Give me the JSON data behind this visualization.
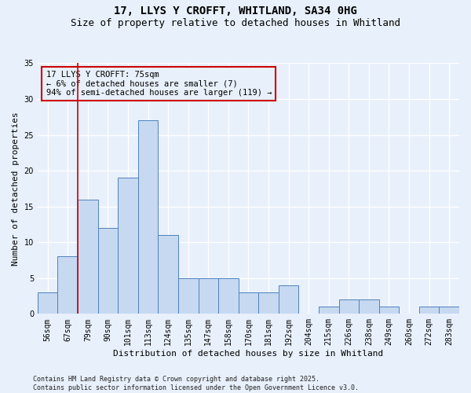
{
  "title_line1": "17, LLYS Y CROFFT, WHITLAND, SA34 0HG",
  "title_line2": "Size of property relative to detached houses in Whitland",
  "xlabel": "Distribution of detached houses by size in Whitland",
  "ylabel": "Number of detached properties",
  "categories": [
    "56sqm",
    "67sqm",
    "79sqm",
    "90sqm",
    "101sqm",
    "113sqm",
    "124sqm",
    "135sqm",
    "147sqm",
    "158sqm",
    "170sqm",
    "181sqm",
    "192sqm",
    "204sqm",
    "215sqm",
    "226sqm",
    "238sqm",
    "249sqm",
    "260sqm",
    "272sqm",
    "283sqm"
  ],
  "values": [
    3,
    8,
    16,
    12,
    19,
    27,
    11,
    5,
    5,
    5,
    3,
    3,
    4,
    0,
    1,
    2,
    2,
    1,
    0,
    1,
    1
  ],
  "bar_color": "#c6d9f1",
  "bar_edge_color": "#4f81bd",
  "vline_color": "#cc0000",
  "vline_x_index": 1.5,
  "annotation_text": "17 LLYS Y CROFFT: 75sqm\n← 6% of detached houses are smaller (7)\n94% of semi-detached houses are larger (119) →",
  "annotation_box_color": "#cc0000",
  "ylim": [
    0,
    35
  ],
  "yticks": [
    0,
    5,
    10,
    15,
    20,
    25,
    30,
    35
  ],
  "background_color": "#e8f0fb",
  "grid_color": "#ffffff",
  "footer": "Contains HM Land Registry data © Crown copyright and database right 2025.\nContains public sector information licensed under the Open Government Licence v3.0.",
  "title_fontsize": 10,
  "subtitle_fontsize": 9,
  "axis_label_fontsize": 8,
  "tick_fontsize": 7,
  "annotation_fontsize": 7.5,
  "footer_fontsize": 6
}
